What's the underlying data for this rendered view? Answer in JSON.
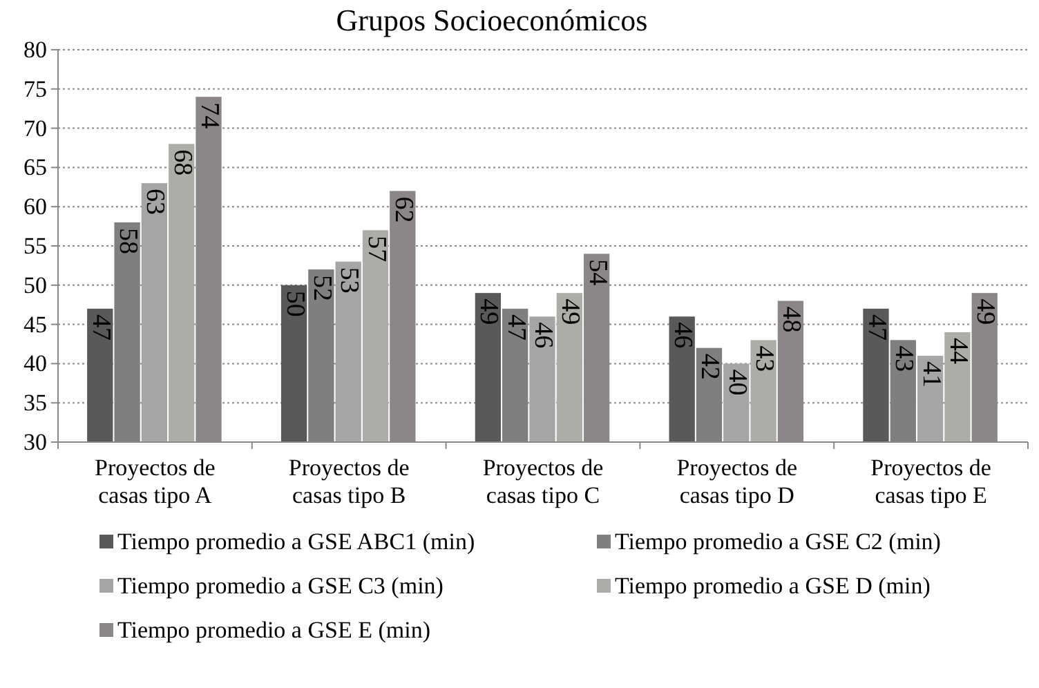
{
  "chart_data": {
    "type": "bar",
    "title": "Grupos Socioeconómicos",
    "categories": [
      "Proyectos de casas tipo A",
      "Proyectos de casas tipo B",
      "Proyectos de casas tipo C",
      "Proyectos de casas tipo D",
      "Proyectos de casas tipo E"
    ],
    "series": [
      {
        "name": "Tiempo promedio a GSE ABC1 (min)",
        "color": "#595959",
        "values": [
          47,
          50,
          49,
          46,
          47
        ]
      },
      {
        "name": "Tiempo promedio a GSE C2 (min)",
        "color": "#7f7f7f",
        "values": [
          58,
          52,
          47,
          42,
          43
        ]
      },
      {
        "name": "Tiempo promedio a GSE C3 (min)",
        "color": "#a5a5a5",
        "values": [
          63,
          53,
          46,
          40,
          41
        ]
      },
      {
        "name": "Tiempo promedio a GSE D (min)",
        "color": "#adada8",
        "values": [
          68,
          57,
          49,
          43,
          44
        ]
      },
      {
        "name": "Tiempo promedio a GSE E (min)",
        "color": "#8c8589",
        "values": [
          74,
          62,
          54,
          48,
          49
        ]
      }
    ],
    "ylim": [
      30,
      80
    ],
    "yticks": [
      30,
      35,
      40,
      45,
      50,
      55,
      60,
      65,
      70,
      75,
      80
    ],
    "grid": "y",
    "data_labels": true,
    "legend": "bottom"
  }
}
